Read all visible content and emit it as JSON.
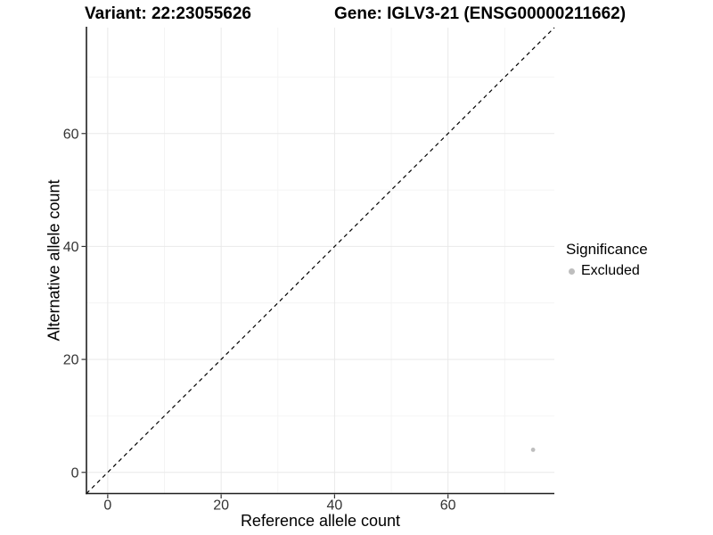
{
  "header": {
    "variant_title": "Variant: 22:23055626",
    "gene_title": "Gene: IGLV3-21 (ENSG00000211662)"
  },
  "axes": {
    "xlabel": "Reference allele count",
    "ylabel": "Alternative allele count"
  },
  "legend": {
    "title": "Significance",
    "items": [
      {
        "label": "Excluded",
        "color": "#bebebe"
      }
    ]
  },
  "chart_data": {
    "type": "scatter",
    "title": "Variant: 22:23055626  Gene: IGLV3-21 (ENSG00000211662)",
    "xlabel": "Reference allele count",
    "ylabel": "Alternative allele count",
    "xlim": [
      -3.75,
      78.75
    ],
    "ylim": [
      -3.75,
      78.75
    ],
    "x_ticks": [
      0,
      20,
      40,
      60
    ],
    "y_ticks": [
      0,
      20,
      40,
      60
    ],
    "x_minor_ticks": [
      10,
      30,
      50,
      70
    ],
    "y_minor_ticks": [
      10,
      30,
      50,
      70
    ],
    "grid": "major and minor, light gray on white",
    "legend_position": "right",
    "series": [
      {
        "name": "Excluded",
        "color": "#bebebe",
        "marker": "circle",
        "points": [
          {
            "x": 75,
            "y": 4
          }
        ]
      }
    ],
    "identity_line": {
      "slope": 1,
      "intercept": 0,
      "style": "dashed",
      "color": "#000000"
    }
  },
  "style": {
    "background": "#ffffff",
    "grid_major_color": "#e9e9e9",
    "grid_minor_color": "#f4f4f4",
    "axis_line_color": "#1f1f1f",
    "tick_color": "#333333",
    "tick_label_color": "#333333",
    "point_color": "#bebebe"
  }
}
